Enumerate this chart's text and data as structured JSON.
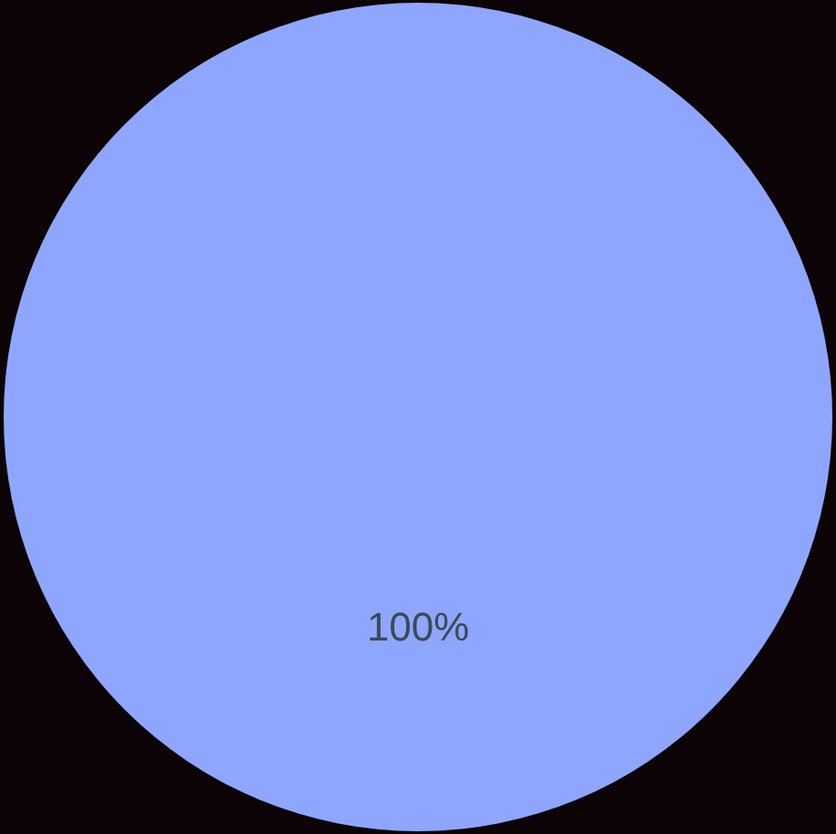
{
  "chart_data": {
    "type": "pie",
    "categories": [
      null
    ],
    "values": [
      100
    ],
    "colors": [
      "#8fa6ff"
    ],
    "value_labels": [
      "100%"
    ]
  }
}
